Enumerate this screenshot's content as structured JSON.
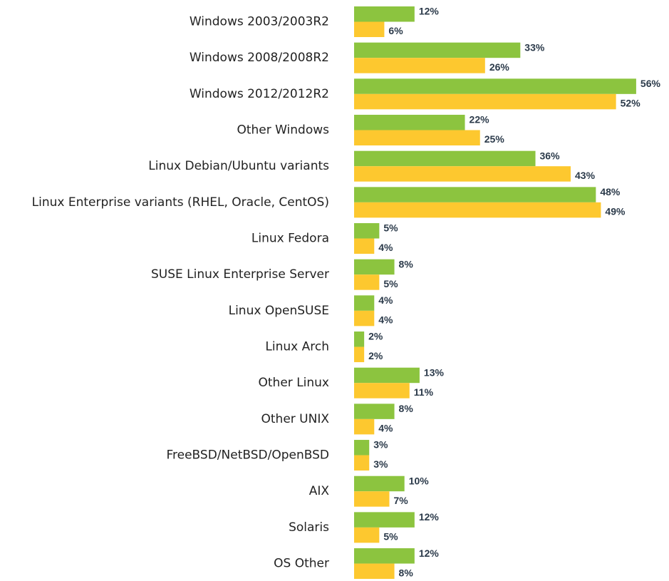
{
  "chart_data": {
    "type": "bar",
    "orientation": "horizontal",
    "categories": [
      "Windows 2003/2003R2",
      "Windows 2008/2008R2",
      "Windows 2012/2012R2",
      "Other Windows",
      "Linux Debian/Ubuntu variants",
      "Linux Enterprise variants (RHEL, Oracle, CentOS)",
      "Linux Fedora",
      "SUSE Linux Enterprise Server",
      "Linux OpenSUSE",
      "Linux Arch",
      "Other Linux",
      "Other UNIX",
      "FreeBSD/NetBSD/OpenBSD",
      "AIX",
      "Solaris",
      "OS Other"
    ],
    "series": [
      {
        "color": "#8cc43f",
        "values": [
          12,
          33,
          56,
          22,
          36,
          48,
          5,
          8,
          4,
          2,
          13,
          8,
          3,
          10,
          12,
          12
        ],
        "value_labels": [
          "12%",
          "33%",
          "56%",
          "22%",
          "36%",
          "48%",
          "5%",
          "8%",
          "4%",
          "2%",
          "13%",
          "8%",
          "3%",
          "10%",
          "12%",
          "12%"
        ]
      },
      {
        "color": "#fdc82f",
        "values": [
          6,
          26,
          52,
          25,
          43,
          49,
          4,
          5,
          4,
          2,
          11,
          4,
          3,
          7,
          5,
          8
        ],
        "value_labels": [
          "6%",
          "26%",
          "52%",
          "25%",
          "43%",
          "49%",
          "4%",
          "5%",
          "4%",
          "2%",
          "11%",
          "4%",
          "3%",
          "7%",
          "5%",
          "8%"
        ]
      }
    ]
  }
}
